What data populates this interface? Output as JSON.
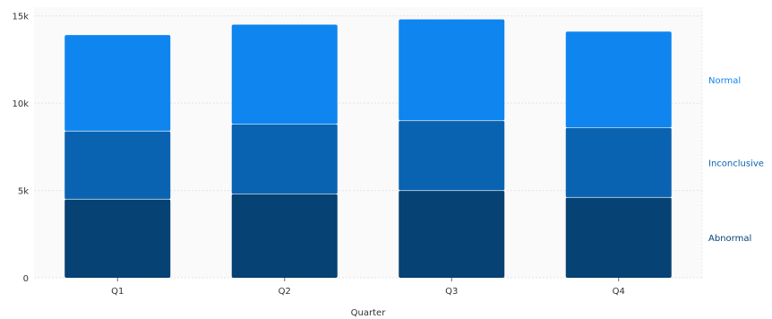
{
  "chart_data": {
    "type": "bar",
    "stacked": true,
    "categories": [
      "Q1",
      "Q2",
      "Q3",
      "Q4"
    ],
    "series": [
      {
        "name": "Abnormal",
        "values": [
          4500,
          4800,
          5000,
          4600
        ],
        "color": "#064273"
      },
      {
        "name": "Inconclusive",
        "values": [
          3900,
          4000,
          4000,
          4000
        ],
        "color": "#0a63b0"
      },
      {
        "name": "Normal",
        "values": [
          5500,
          5700,
          5800,
          5500
        ],
        "color": "#0f85ef"
      }
    ],
    "xlabel": "Quarter",
    "ylabel": "",
    "ylim": [
      0,
      15500
    ],
    "yticks": [
      0,
      5000,
      10000,
      15000
    ],
    "ytick_labels": [
      "0",
      "5k",
      "10k",
      "15k"
    ],
    "grid": true,
    "legend_placement": "right",
    "plot_background": "#fafafa"
  }
}
